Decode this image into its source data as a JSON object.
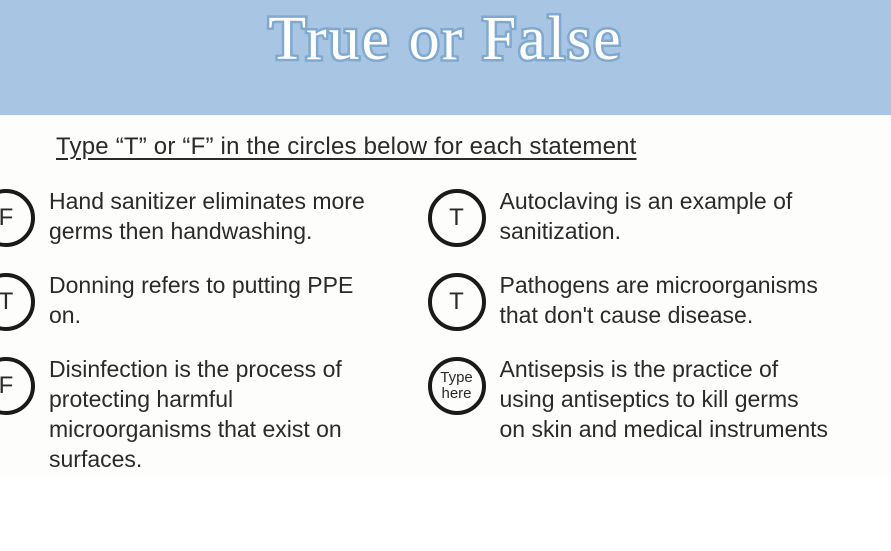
{
  "colors": {
    "header_bg": "#a8c6e3",
    "title_fill": "#ffffff",
    "title_stroke": "#7fa9cf",
    "text": "#2a2a2a",
    "content_bg": "#fdfdfb",
    "circle_border": "#1a1a1a"
  },
  "typography": {
    "title_fontsize": 62,
    "instruction_fontsize": 24,
    "statement_fontsize": 23,
    "answer_fontsize": 24,
    "placeholder_fontsize": 15
  },
  "title": "True or False",
  "instructions": "Type “T” or “F” in the circles below for each statement",
  "placeholder": "Type here",
  "statements": {
    "s1": {
      "text": "Hand sanitizer eliminates more germs then handwashing.",
      "answer": "F"
    },
    "s2": {
      "text": "Autoclaving is an example of sanitization.",
      "answer": "T"
    },
    "s3": {
      "text": "Donning refers to putting PPE on.",
      "answer": "T"
    },
    "s4": {
      "text": "Pathogens are microorganisms that don't cause disease.",
      "answer": "T"
    },
    "s5": {
      "text": "Disinfection is the process of protecting harmful microorganisms that exist on surfaces.",
      "answer": "F"
    },
    "s6": {
      "text": "Antisepsis is the practice of using antiseptics to kill germs on skin and medical instruments",
      "answer": ""
    }
  }
}
